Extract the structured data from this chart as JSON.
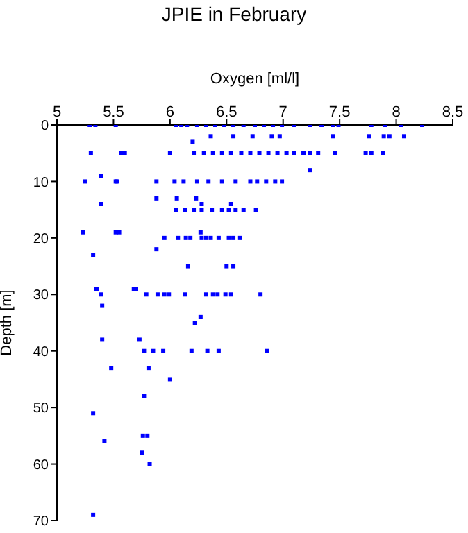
{
  "chart_data": {
    "type": "scatter",
    "title": "JPIE in February",
    "xlabel": "Oxygen [ml/l]",
    "ylabel": "Depth [m]",
    "color": "#0000ff",
    "marker": "square",
    "xlim": [
      5,
      8.5
    ],
    "xticks": [
      5,
      5.5,
      6,
      6.5,
      7,
      7.5,
      8,
      8.5
    ],
    "ylim": [
      70,
      0
    ],
    "yticks": [
      0,
      10,
      20,
      30,
      40,
      50,
      60,
      70
    ],
    "x": [
      5.29,
      5.34,
      5.52,
      6.05,
      6.1,
      6.15,
      6.24,
      6.32,
      6.4,
      6.48,
      6.56,
      6.65,
      6.75,
      6.83,
      6.91,
      6.99,
      7.1,
      7.24,
      7.34,
      7.44,
      7.49,
      7.78,
      7.9,
      8.04,
      8.23,
      6.36,
      6.56,
      6.73,
      6.9,
      6.97,
      7.44,
      7.76,
      7.89,
      7.94,
      8.07,
      6.2,
      5.3,
      5.57,
      5.6,
      6.0,
      6.21,
      6.3,
      6.38,
      6.46,
      6.54,
      6.63,
      6.71,
      6.79,
      6.87,
      6.95,
      7.03,
      7.1,
      7.18,
      7.24,
      7.31,
      7.46,
      7.73,
      7.78,
      7.88,
      7.24,
      5.39,
      5.25,
      5.52,
      5.53,
      5.88,
      6.04,
      6.12,
      6.24,
      6.34,
      6.46,
      6.58,
      6.71,
      6.77,
      6.85,
      6.93,
      6.99,
      5.88,
      6.06,
      6.23,
      5.39,
      6.28,
      6.54,
      6.05,
      6.13,
      6.21,
      6.28,
      6.37,
      6.46,
      6.52,
      6.58,
      6.65,
      6.76,
      5.23,
      5.52,
      5.55,
      6.27,
      5.95,
      6.07,
      6.14,
      6.18,
      6.28,
      6.32,
      6.36,
      6.43,
      6.52,
      6.56,
      6.62,
      5.88,
      5.32,
      6.16,
      6.5,
      6.56,
      5.35,
      5.68,
      5.7,
      5.39,
      5.79,
      5.89,
      5.95,
      5.99,
      6.13,
      6.32,
      6.38,
      6.42,
      6.49,
      6.54,
      6.8,
      5.4,
      6.27,
      6.22,
      5.4,
      5.73,
      5.77,
      5.85,
      5.94,
      6.19,
      6.33,
      6.43,
      6.86,
      5.48,
      5.81,
      6.0,
      5.77,
      5.32,
      5.76,
      5.8,
      5.42,
      5.75,
      5.82,
      5.32
    ],
    "values": [
      0,
      0,
      0,
      0,
      0,
      0,
      0,
      0,
      0,
      0,
      0,
      0,
      0,
      0,
      0,
      0,
      0,
      0,
      0,
      0,
      0,
      0,
      0,
      0,
      0,
      2,
      2,
      2,
      2,
      2,
      2,
      2,
      2,
      2,
      2,
      3,
      5,
      5,
      5,
      5,
      5,
      5,
      5,
      5,
      5,
      5,
      5,
      5,
      5,
      5,
      5,
      5,
      5,
      5,
      5,
      5,
      5,
      5,
      5,
      8,
      9,
      10,
      10,
      10,
      10,
      10,
      10,
      10,
      10,
      10,
      10,
      10,
      10,
      10,
      10,
      10,
      13,
      13,
      13,
      14,
      14,
      14,
      15,
      15,
      15,
      15,
      15,
      15,
      15,
      15,
      15,
      15,
      19,
      19,
      19,
      19,
      20,
      20,
      20,
      20,
      20,
      20,
      20,
      20,
      20,
      20,
      20,
      22,
      23,
      25,
      25,
      25,
      29,
      29,
      29,
      30,
      30,
      30,
      30,
      30,
      30,
      30,
      30,
      30,
      30,
      30,
      30,
      32,
      34,
      35,
      38,
      38,
      40,
      40,
      40,
      40,
      40,
      40,
      40,
      43,
      43,
      45,
      48,
      51,
      55,
      55,
      56,
      58,
      60,
      69
    ]
  }
}
